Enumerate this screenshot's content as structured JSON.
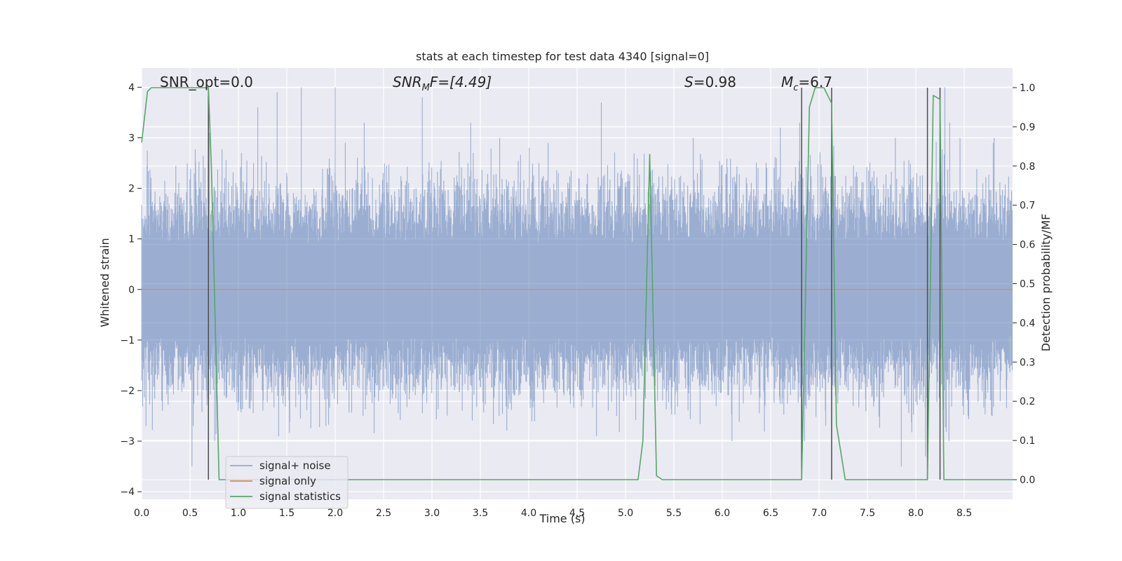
{
  "chart_data": {
    "type": "line",
    "title": "stats at each timestep for test data 4340 [signal=0]",
    "xlabel": "Time (s)",
    "ylabel_left": "Whitened strain",
    "ylabel_right": "Detection probability/MF",
    "xlim": [
      0.0,
      9.0
    ],
    "ylim_left": [
      -4.15,
      4.38
    ],
    "ylim_right": [
      -0.05,
      1.05
    ],
    "xticks": [
      0.0,
      0.5,
      1.0,
      1.5,
      2.0,
      2.5,
      3.0,
      3.5,
      4.0,
      4.5,
      5.0,
      5.5,
      6.0,
      6.5,
      7.0,
      7.5,
      8.0,
      8.5
    ],
    "xtick_labels": [
      "0.0",
      "0.5",
      "1.0",
      "1.5",
      "2.0",
      "2.5",
      "3.0",
      "3.5",
      "4.0",
      "4.5",
      "5.0",
      "5.5",
      "6.0",
      "6.5",
      "7.0",
      "7.5",
      "8.0",
      "8.5"
    ],
    "yticks_left": [
      -4,
      -3,
      -2,
      -1,
      0,
      1,
      2,
      3,
      4
    ],
    "ytick_labels_left": [
      "−4",
      "−3",
      "−2",
      "−1",
      "0",
      "1",
      "2",
      "3",
      "4"
    ],
    "yticks_right": [
      0.0,
      0.1,
      0.2,
      0.3,
      0.4,
      0.5,
      0.6,
      0.7,
      0.8,
      0.9,
      1.0
    ],
    "ytick_labels_right": [
      "0.0",
      "0.1",
      "0.2",
      "0.3",
      "0.4",
      "0.5",
      "0.6",
      "0.7",
      "0.8",
      "0.9",
      "1.0"
    ],
    "grid": true,
    "legend_position": "lower-left",
    "annotations": {
      "snr_opt": "SNR_opt=0.0",
      "snr_mf_symbol": "SNR",
      "snr_mf_sub": "M",
      "snr_mf_rest": "F=[4.49]",
      "s_symbol": "S",
      "s_rest": "=0.98",
      "mc_symbol": "M",
      "mc_sub": "c",
      "mc_rest": "=6.7"
    },
    "series": [
      {
        "name": "signal+ noise",
        "color": "#4c72b0",
        "axis": "left",
        "style": "dense noise, approx. uniform band from -1.3 to 1.3 with peaks up to about -3.5 and 4.0",
        "peaks": [
          [
            0.52,
            -3.5
          ],
          [
            0.7,
            3.1
          ],
          [
            1.2,
            3.6
          ],
          [
            1.4,
            3.9
          ],
          [
            1.65,
            4.0
          ],
          [
            2.0,
            4.0
          ],
          [
            2.3,
            3.3
          ],
          [
            2.9,
            3.8
          ],
          [
            3.4,
            3.3
          ],
          [
            3.7,
            3.0
          ],
          [
            4.2,
            2.9
          ],
          [
            4.75,
            3.7
          ],
          [
            4.7,
            -2.9
          ],
          [
            5.2,
            1.6
          ],
          [
            5.7,
            3.0
          ],
          [
            6.1,
            -3.0
          ],
          [
            6.6,
            3.2
          ],
          [
            6.8,
            3.3
          ],
          [
            6.85,
            -3.0
          ],
          [
            7.85,
            -3.5
          ],
          [
            8.3,
            4.0
          ],
          [
            8.1,
            -3.3
          ],
          [
            8.35,
            3.3
          ],
          [
            8.8,
            2.9
          ]
        ]
      },
      {
        "name": "signal only",
        "color": "#dd8452",
        "axis": "left",
        "x": [
          0.0,
          9.0
        ],
        "y": [
          0.0,
          0.0
        ]
      },
      {
        "name": "signal statistics",
        "color": "#55a868",
        "axis": "right",
        "x": [
          0.0,
          0.06,
          0.1,
          0.2,
          0.3,
          0.4,
          0.5,
          0.6,
          0.69,
          0.72,
          0.76,
          0.8,
          0.85,
          1.0,
          2.0,
          3.0,
          4.0,
          5.0,
          5.13,
          5.18,
          5.25,
          5.32,
          5.38,
          5.5,
          6.0,
          6.5,
          6.82,
          6.9,
          6.96,
          7.05,
          7.13,
          7.18,
          7.27,
          7.4,
          7.6,
          7.8,
          8.12,
          8.18,
          8.25,
          8.29,
          8.4,
          8.5,
          9.0
        ],
        "y": [
          0.86,
          0.99,
          1.0,
          1.0,
          1.0,
          1.0,
          1.0,
          1.0,
          1.0,
          0.8,
          0.4,
          0.0,
          0.0,
          0.0,
          0.0,
          0.0,
          0.0,
          0.0,
          0.0,
          0.1,
          0.83,
          0.01,
          0.0,
          0.0,
          0.0,
          0.0,
          0.0,
          0.95,
          1.0,
          1.0,
          0.96,
          0.14,
          0.0,
          0.0,
          0.0,
          0.0,
          0.0,
          0.98,
          0.97,
          0.0,
          0.0,
          0.0,
          0.0
        ]
      }
    ],
    "vlines": {
      "color": "#4d4d4d",
      "x": [
        0.69,
        6.82,
        7.13,
        8.12,
        8.25
      ],
      "ymin_right": 0.0,
      "ymax_right": 1.0
    }
  }
}
